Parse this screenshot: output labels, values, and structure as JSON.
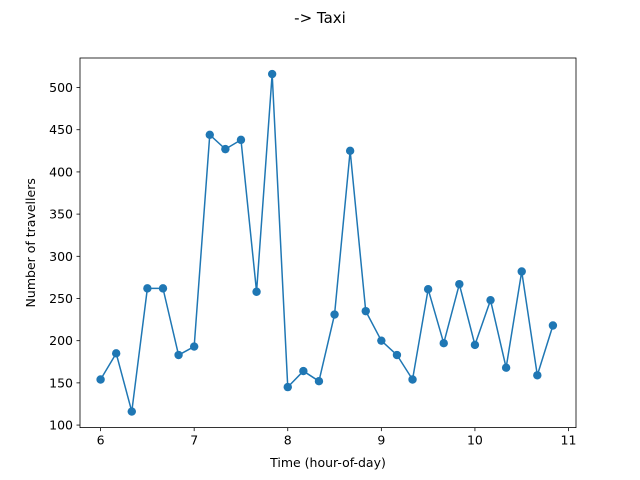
{
  "chart_data": {
    "type": "line",
    "title": "-> Taxi",
    "xlabel": "Time (hour-of-day)",
    "ylabel": "Number of travellers",
    "xlim": [
      5.78,
      11.08
    ],
    "ylim": [
      97,
      535
    ],
    "xticks": [
      6,
      7,
      8,
      9,
      10,
      11
    ],
    "yticks": [
      100,
      150,
      200,
      250,
      300,
      350,
      400,
      450,
      500
    ],
    "grid": false,
    "legend": "none",
    "series": [
      {
        "color": "#1f77b4",
        "marker": "circle",
        "x": [
          6.0,
          6.1667,
          6.3333,
          6.5,
          6.6667,
          6.8333,
          7.0,
          7.1667,
          7.3333,
          7.5,
          7.6667,
          7.8333,
          8.0,
          8.1667,
          8.3333,
          8.5,
          8.6667,
          8.8333,
          9.0,
          9.1667,
          9.3333,
          9.5,
          9.6667,
          9.8333,
          10.0,
          10.1667,
          10.3333,
          10.5,
          10.6667,
          10.8333
        ],
        "y": [
          154,
          185,
          116,
          262,
          262,
          183,
          193,
          444,
          427,
          438,
          258,
          516,
          145,
          164,
          152,
          231,
          425,
          235,
          200,
          183,
          154,
          261,
          197,
          267,
          195,
          248,
          168,
          282,
          159,
          218
        ]
      }
    ]
  }
}
